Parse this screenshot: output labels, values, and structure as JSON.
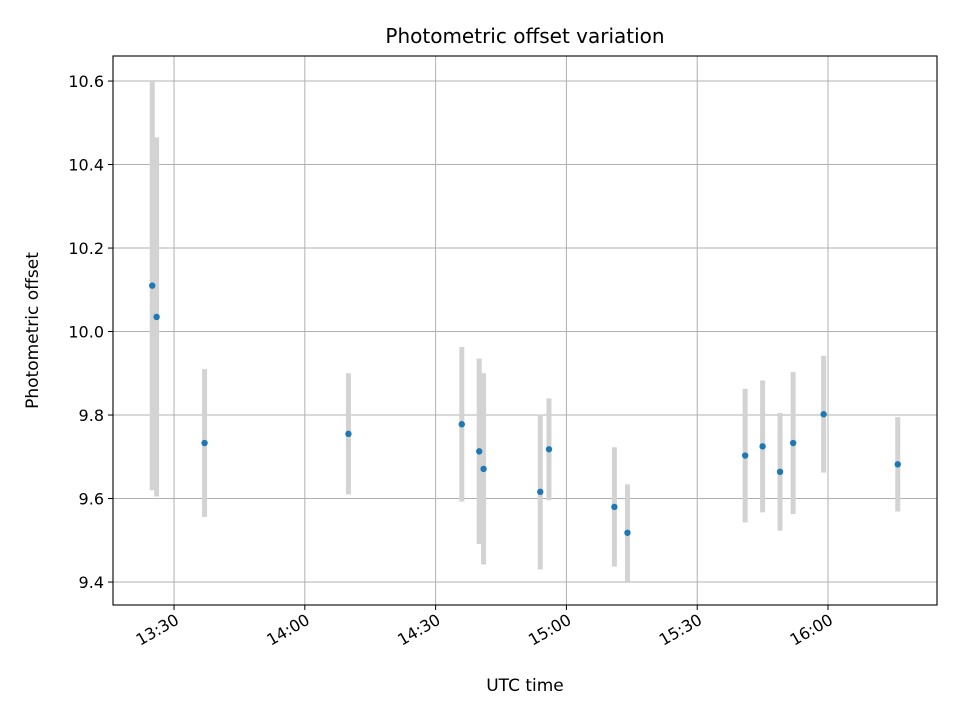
{
  "chart_data": {
    "type": "scatter",
    "title": "Photometric offset variation",
    "xlabel": "UTC time",
    "ylabel": "Photometric offset",
    "xlim": [
      "13:16",
      "16:25"
    ],
    "ylim": [
      9.345,
      10.66
    ],
    "x_ticks": [
      "13:30",
      "14:00",
      "14:30",
      "15:00",
      "15:30",
      "16:00"
    ],
    "y_ticks": [
      9.4,
      9.6,
      9.8,
      10.0,
      10.2,
      10.4,
      10.6
    ],
    "grid": true,
    "marker_color": "#1f77b4",
    "errorbar_color": "#d3d3d3",
    "points": [
      {
        "x": "13:25",
        "y": 10.11,
        "yerr": 0.49
      },
      {
        "x": "13:26",
        "y": 10.035,
        "yerr": 0.43
      },
      {
        "x": "13:37",
        "y": 9.733,
        "yerr": 0.177
      },
      {
        "x": "14:10",
        "y": 9.755,
        "yerr": 0.145
      },
      {
        "x": "14:36",
        "y": 9.778,
        "yerr": 0.185
      },
      {
        "x": "14:40",
        "y": 9.713,
        "yerr": 0.222
      },
      {
        "x": "14:41",
        "y": 9.671,
        "yerr": 0.229
      },
      {
        "x": "14:54",
        "y": 9.616,
        "yerr": 0.186
      },
      {
        "x": "14:56",
        "y": 9.718,
        "yerr": 0.122
      },
      {
        "x": "15:11",
        "y": 9.58,
        "yerr": 0.143
      },
      {
        "x": "15:14",
        "y": 9.518,
        "yerr": 0.116
      },
      {
        "x": "15:41",
        "y": 9.703,
        "yerr": 0.16
      },
      {
        "x": "15:45",
        "y": 9.725,
        "yerr": 0.158
      },
      {
        "x": "15:49",
        "y": 9.664,
        "yerr": 0.141
      },
      {
        "x": "15:52",
        "y": 9.733,
        "yerr": 0.17
      },
      {
        "x": "15:59",
        "y": 9.802,
        "yerr": 0.14
      },
      {
        "x": "16:16",
        "y": 9.682,
        "yerr": 0.113
      }
    ]
  }
}
